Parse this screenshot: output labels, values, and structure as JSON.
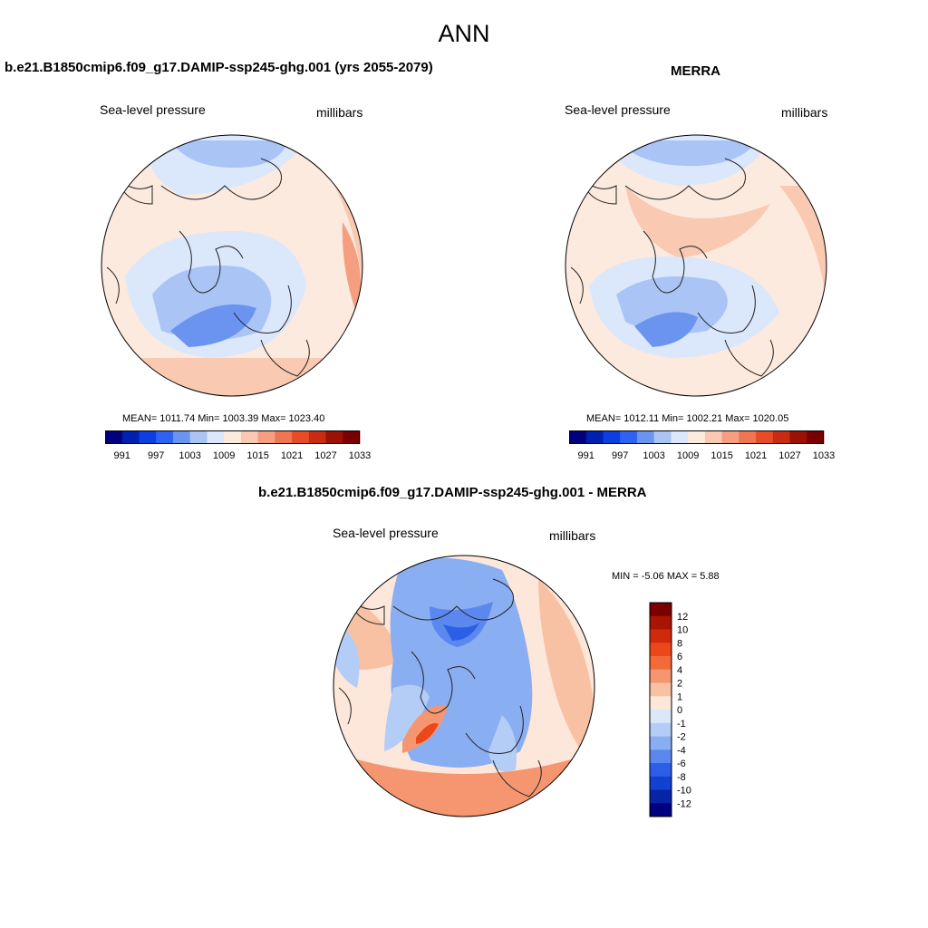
{
  "title": "ANN",
  "panels": {
    "model": {
      "title": "b.e21.B1850cmip6.f09_g17.DAMIP-ssp245-ghg.001 (yrs 2055-2079)",
      "variable": "Sea-level pressure",
      "units": "millibars",
      "stats": "MEAN= 1011.74  Min= 1003.39  Max= 1023.40"
    },
    "obs": {
      "title": "MERRA",
      "variable": "Sea-level pressure",
      "units": "millibars",
      "stats": "MEAN= 1012.11  Min= 1002.21  Max= 1020.05"
    },
    "diff": {
      "title": "b.e21.B1850cmip6.f09_g17.DAMIP-ssp245-ghg.001 - MERRA",
      "variable": "Sea-level pressure",
      "units": "millibars",
      "stats": "MIN =  -5.06 MAX =   5.88"
    }
  },
  "colorbar_abs": {
    "labels": [
      "991",
      "997",
      "1003",
      "1009",
      "1015",
      "1021",
      "1027",
      "1033"
    ],
    "colors": [
      "#00007f",
      "#0020b0",
      "#0b3fe0",
      "#2f62f2",
      "#6b94f0",
      "#a9c4f5",
      "#dbe7fb",
      "#fdeadf",
      "#f9c9b2",
      "#f59f80",
      "#f07550",
      "#e84c26",
      "#c82b10",
      "#9a1206",
      "#7a0000"
    ]
  },
  "colorbar_diff": {
    "labels": [
      "12",
      "10",
      "8",
      "6",
      "4",
      "2",
      "1",
      "0",
      "-1",
      "-2",
      "-4",
      "-6",
      "-8",
      "-10",
      "-12"
    ],
    "colors": [
      "#7a0000",
      "#a81505",
      "#d02a0c",
      "#ec4718",
      "#f26a3a",
      "#f59670",
      "#f9c1a4",
      "#fde7da",
      "#dbe7fb",
      "#b4cdf6",
      "#8aaef2",
      "#5b88ee",
      "#2d5ee8",
      "#1240d0",
      "#0524a8",
      "#000080"
    ]
  }
}
